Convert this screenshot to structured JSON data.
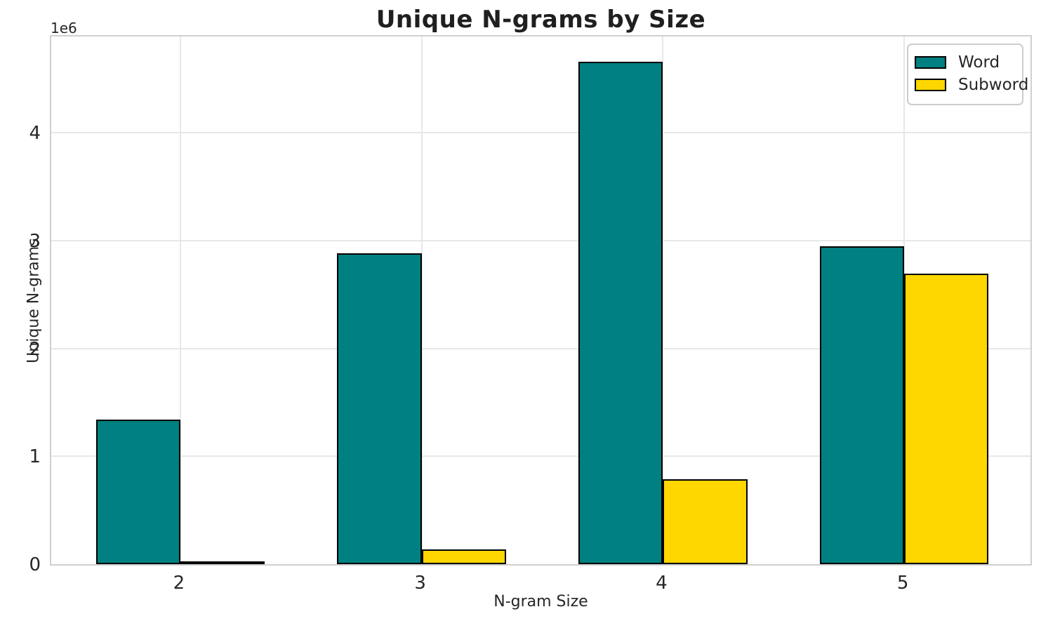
{
  "chart_data": {
    "type": "bar",
    "title": "Unique N-grams by Size",
    "xlabel": "N-gram Size",
    "ylabel": "Unique N-grams",
    "y_offset_label": "1e6",
    "categories": [
      "2",
      "3",
      "4",
      "5"
    ],
    "series": [
      {
        "name": "Word",
        "color": "#008080",
        "values": [
          1340000,
          2880000,
          4660000,
          2950000
        ]
      },
      {
        "name": "Subword",
        "color": "#FFD700",
        "values": [
          20000,
          135000,
          785000,
          2695000
        ]
      }
    ],
    "bar_edge_color": "#000000",
    "bar_width_data_units": 0.35,
    "ylim": [
      0,
      4920000
    ],
    "yticks": {
      "values": [
        0,
        1000000,
        2000000,
        3000000,
        4000000
      ],
      "labels": [
        "0",
        "1",
        "2",
        "3",
        "4"
      ]
    },
    "grid": true,
    "legend": {
      "position": "upper right",
      "entries": [
        "Word",
        "Subword"
      ]
    }
  }
}
